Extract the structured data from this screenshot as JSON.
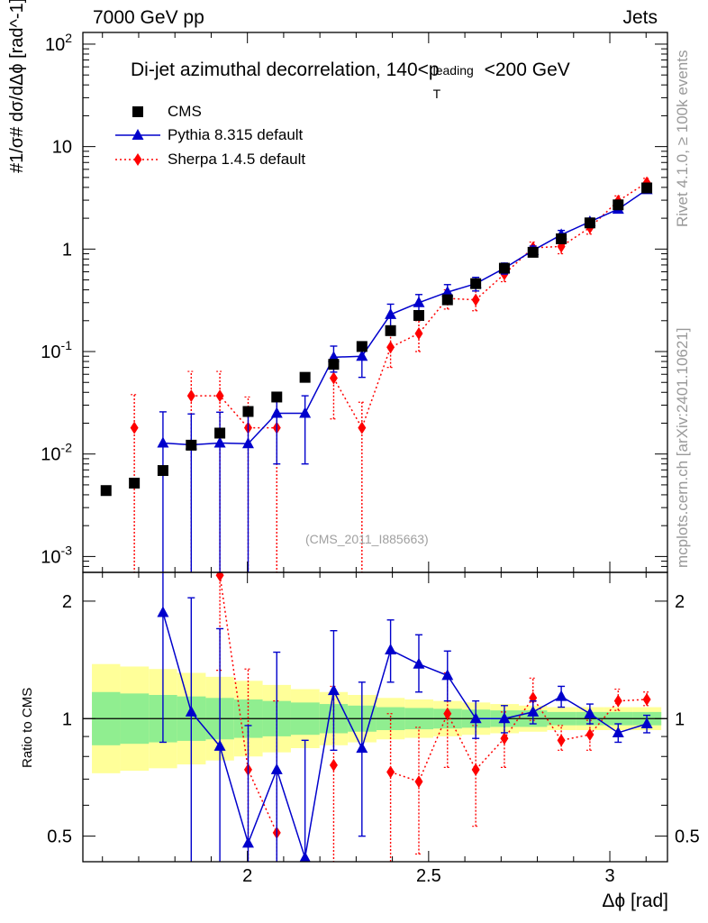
{
  "header": {
    "left": "7000 GeV pp",
    "right": "Jets"
  },
  "side_labels": {
    "rivet": "Rivet 4.1.0, ≥ 100k events",
    "mcplots": "mcplots.cern.ch [arXiv:2401.10621]"
  },
  "watermark": "(CMS_2011_I885663)",
  "chart_data": {
    "type": "scatter",
    "title": "Di-jet azimuthal decorrelation, 140<p_T^leading<200 GeV",
    "title_parts": {
      "prefix": "Di-jet azimuthal decorrelation, 140<p",
      "sup": "leading",
      "sub": "T",
      "suffix": "<200 GeV"
    },
    "xlabel": "Δϕ [rad]",
    "ylabel_main": "#1/σ# dσ/dΔϕ [rad^-1]",
    "ylabel_ratio": "Ratio to CMS",
    "xlim": [
      1.546,
      3.159
    ],
    "ylim_main": [
      0.0007,
      130
    ],
    "ylim_ratio": [
      0.43,
      2.37
    ],
    "yscale_main": "log",
    "yscale_ratio": "log",
    "x_ticks": [
      2,
      2.5,
      3
    ],
    "x_tick_labels": [
      "2",
      "2.5",
      "3"
    ],
    "main_y_ticks": [
      0.001,
      0.01,
      0.1,
      1,
      10,
      100
    ],
    "main_y_tick_labels": [
      "10^-3",
      "10^-2",
      "10^-1",
      "1",
      "10",
      "10^2"
    ],
    "ratio_y_ticks": [
      0.5,
      1,
      2
    ],
    "ratio_y_tick_labels": [
      "0.5",
      "1",
      "2"
    ],
    "legend": [
      {
        "name": "CMS",
        "color": "#000000",
        "marker": "square",
        "line": "none"
      },
      {
        "name": "Pythia 8.315 default",
        "color": "#0000cc",
        "marker": "triangle",
        "line": "solid"
      },
      {
        "name": "Sherpa 1.4.5 default",
        "color": "#ff0000",
        "marker": "diamond",
        "line": "dotted"
      }
    ],
    "x": [
      1.61,
      1.688,
      1.767,
      1.845,
      1.924,
      2.002,
      2.081,
      2.159,
      2.238,
      2.316,
      2.395,
      2.473,
      2.552,
      2.63,
      2.709,
      2.788,
      2.866,
      2.945,
      3.023,
      3.102
    ],
    "x_edges": [
      1.571,
      1.649,
      1.728,
      1.806,
      1.885,
      1.963,
      2.042,
      2.12,
      2.199,
      2.277,
      2.356,
      2.434,
      2.513,
      2.592,
      2.67,
      2.749,
      2.827,
      2.906,
      2.984,
      3.063,
      3.142
    ],
    "series": [
      {
        "name": "CMS",
        "values": [
          0.0044,
          0.0052,
          0.0069,
          0.0122,
          0.016,
          0.026,
          0.036,
          0.056,
          0.075,
          0.112,
          0.16,
          0.225,
          0.32,
          0.46,
          0.65,
          0.93,
          1.26,
          1.8,
          2.7,
          3.95
        ]
      },
      {
        "name": "Pythia 8.315 default",
        "values": [
          null,
          null,
          0.0128,
          0.0123,
          0.0128,
          0.0126,
          0.025,
          0.025,
          0.088,
          0.09,
          0.23,
          0.3,
          0.38,
          0.46,
          0.65,
          0.97,
          1.38,
          1.85,
          2.45,
          3.8
        ],
        "err_low": [
          null,
          null,
          0.0128,
          0.0123,
          0.0128,
          0.0126,
          0.017,
          0.017,
          0.025,
          0.034,
          0.06,
          0.06,
          0.07,
          0.07,
          0.08,
          0.1,
          0.14,
          0.15,
          0.18,
          0.25
        ],
        "err_high": [
          null,
          null,
          0.013,
          0.0123,
          0.0128,
          0.0126,
          0.012,
          0.012,
          0.025,
          0.034,
          0.06,
          0.06,
          0.07,
          0.07,
          0.08,
          0.1,
          0.14,
          0.15,
          0.18,
          0.25
        ]
      },
      {
        "name": "Sherpa 1.4.5 default",
        "values": [
          null,
          0.018,
          null,
          0.037,
          0.037,
          0.018,
          0.018,
          null,
          0.055,
          0.018,
          0.11,
          0.15,
          0.33,
          0.32,
          0.57,
          1.03,
          1.06,
          1.62,
          2.95,
          4.45
        ],
        "err_low": [
          null,
          0.018,
          null,
          0.037,
          0.037,
          0.018,
          0.018,
          null,
          0.033,
          0.018,
          0.04,
          0.05,
          0.07,
          0.07,
          0.09,
          0.14,
          0.16,
          0.22,
          0.35,
          0.45
        ],
        "err_high": [
          null,
          0.02,
          null,
          0.027,
          0.027,
          0.018,
          0.018,
          null,
          0.033,
          0.014,
          0.04,
          0.05,
          0.07,
          0.07,
          0.09,
          0.14,
          0.16,
          0.22,
          0.35,
          0.45
        ]
      }
    ],
    "ratio_series": [
      {
        "name": "Pythia 8.315 default",
        "values": [
          null,
          null,
          1.87,
          1.04,
          0.85,
          0.48,
          0.74,
          0.44,
          1.18,
          0.84,
          1.5,
          1.38,
          1.29,
          1.0,
          1.0,
          1.04,
          1.14,
          1.03,
          0.92,
          0.97
        ],
        "err_low": [
          null,
          null,
          1.0,
          1.0,
          0.85,
          0.48,
          0.74,
          0.44,
          0.35,
          0.34,
          0.26,
          0.21,
          0.18,
          0.11,
          0.08,
          0.07,
          0.07,
          0.06,
          0.05,
          0.05
        ],
        "err_high": [
          null,
          null,
          1.0,
          1.0,
          0.85,
          0.48,
          0.74,
          0.44,
          0.5,
          0.4,
          0.29,
          0.26,
          0.2,
          0.11,
          0.08,
          0.07,
          0.07,
          0.06,
          0.05,
          0.05
        ]
      },
      {
        "name": "Sherpa 1.4.5 default",
        "values": [
          null,
          null,
          null,
          null,
          2.33,
          0.74,
          0.51,
          null,
          0.76,
          null,
          0.73,
          0.69,
          1.03,
          0.74,
          0.89,
          1.13,
          0.88,
          0.91,
          1.11,
          1.12
        ],
        "err_low": [
          null,
          null,
          null,
          null,
          1.0,
          0.74,
          0.51,
          null,
          0.4,
          null,
          0.3,
          0.24,
          0.28,
          0.21,
          0.14,
          0.14,
          0.05,
          0.08,
          0.06,
          0.04
        ],
        "err_high": [
          null,
          null,
          null,
          null,
          1.0,
          0.6,
          0.6,
          null,
          0.45,
          null,
          0.3,
          0.26,
          0.28,
          0.22,
          0.15,
          0.14,
          0.08,
          0.08,
          0.08,
          0.05
        ]
      }
    ],
    "ratio_band_inner": [
      1.17,
      1.16,
      1.15,
      1.14,
      1.13,
      1.12,
      1.11,
      1.1,
      1.09,
      1.08,
      1.07,
      1.065,
      1.06,
      1.055,
      1.05,
      1.05,
      1.04,
      1.04,
      1.04,
      1.04
    ],
    "ratio_band_outer": [
      1.38,
      1.36,
      1.34,
      1.31,
      1.28,
      1.25,
      1.22,
      1.19,
      1.17,
      1.15,
      1.13,
      1.12,
      1.11,
      1.1,
      1.09,
      1.08,
      1.07,
      1.07,
      1.07,
      1.07
    ],
    "band_colors": {
      "inner": "#90ee90",
      "outer": "#ffff99"
    },
    "colors": {
      "data": "#000000",
      "pythia": "#0000cc",
      "sherpa": "#ff0000"
    }
  }
}
